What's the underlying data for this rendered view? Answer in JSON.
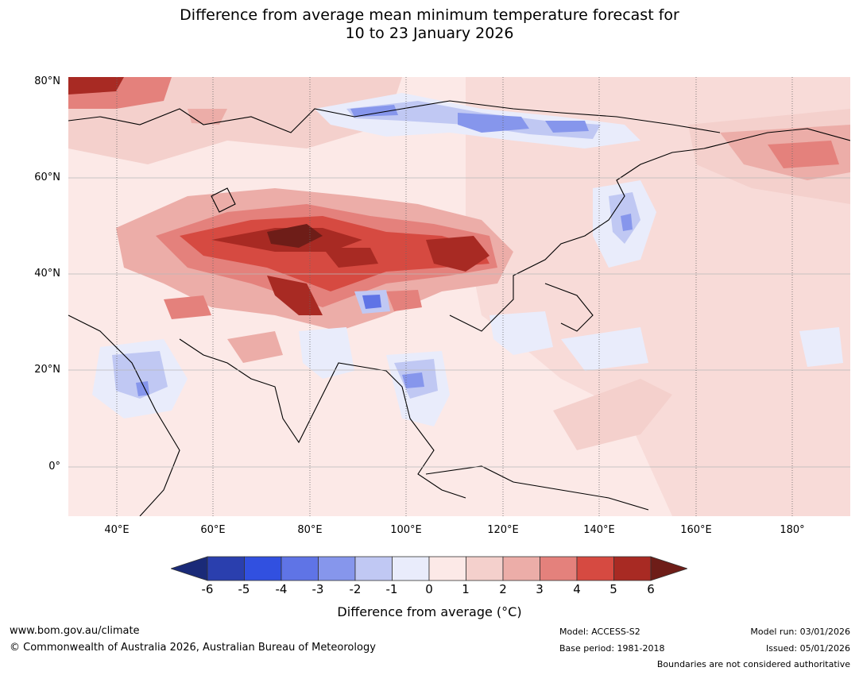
{
  "title": {
    "line1": "Difference from average mean minimum temperature forecast for",
    "line2": "10 to 23 January 2026"
  },
  "map": {
    "lat_labels": [
      "80°N",
      "60°N",
      "40°N",
      "20°N",
      "0°"
    ],
    "lon_labels": [
      "40°E",
      "60°E",
      "80°E",
      "100°E",
      "120°E",
      "140°E",
      "160°E",
      "180°"
    ]
  },
  "colorbar": {
    "ticks": [
      "-6",
      "-5",
      "-4",
      "-3",
      "-2",
      "-1",
      "0",
      "1",
      "2",
      "3",
      "4",
      "5",
      "6"
    ],
    "colors": [
      "#2a3fae",
      "#3150e0",
      "#5f74e6",
      "#8696ec",
      "#c0c8f3",
      "#e9ecfb",
      "#fce9e7",
      "#f4d0cc",
      "#ecada8",
      "#e4817c",
      "#d64a41",
      "#a82a23"
    ],
    "low_extend_color": "#1a2a78",
    "high_extend_color": "#6e1d18",
    "label": "Difference from average (°C)"
  },
  "footer": {
    "website": "www.bom.gov.au/climate",
    "copyright": "© Commonwealth of Australia 2026, Australian Bureau of Meteorology",
    "model": "Model: ACCESS-S2",
    "base_period": "Base period: 1981-2018",
    "model_run": "Model run: 03/01/2026",
    "issued": "Issued: 05/01/2026",
    "disclaimer": "Boundaries are not considered authoritative"
  }
}
